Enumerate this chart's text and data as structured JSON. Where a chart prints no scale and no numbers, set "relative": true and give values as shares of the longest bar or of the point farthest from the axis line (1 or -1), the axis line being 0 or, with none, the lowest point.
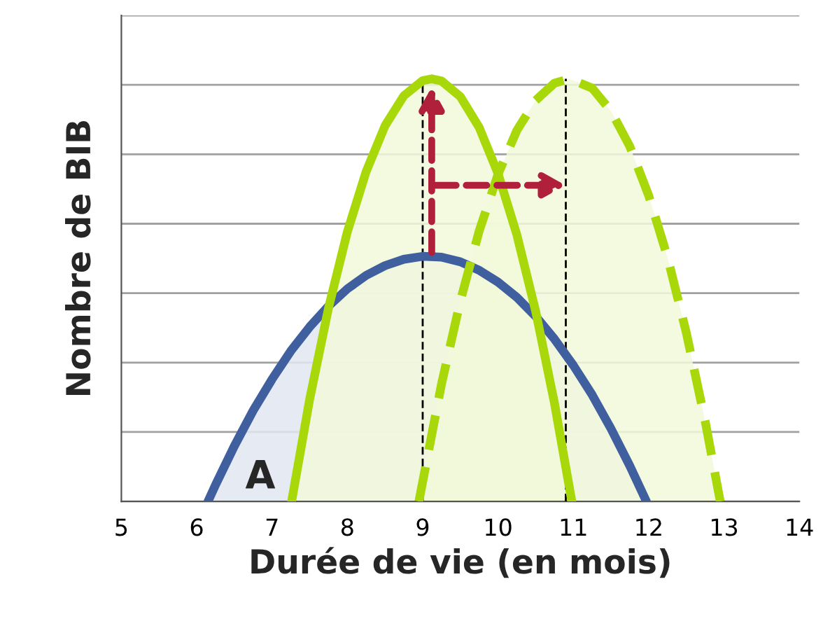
{
  "chart_data": {
    "type": "area",
    "relative": true,
    "xlabel": "Durée de vie (en mois)",
    "ylabel": "Nombre de BIB",
    "xlim": [
      5,
      14
    ],
    "xticks": [
      5,
      6,
      7,
      8,
      9,
      10,
      11,
      12,
      13,
      14
    ],
    "grid": "y",
    "series": [
      {
        "color": "#3f5f9f",
        "line_style": "solid",
        "x": [
          6.15,
          6.25,
          6.5,
          6.75,
          7,
          7.25,
          7.5,
          7.75,
          8,
          8.25,
          8.5,
          8.75,
          9,
          9.25,
          9.5,
          9.75,
          10,
          10.25,
          10.5,
          10.75,
          11,
          11.25,
          11.5,
          11.75,
          11.97
        ],
        "values": [
          0,
          0.039,
          0.131,
          0.215,
          0.289,
          0.356,
          0.413,
          0.462,
          0.503,
          0.535,
          0.558,
          0.573,
          0.58,
          0.578,
          0.567,
          0.547,
          0.519,
          0.483,
          0.438,
          0.384,
          0.322,
          0.252,
          0.172,
          0.084,
          0
        ]
      },
      {
        "color": "#a8d80a",
        "line_style": "solid",
        "x": [
          7.26,
          7.5,
          7.75,
          8,
          8.25,
          8.5,
          8.75,
          9,
          9.12,
          9.25,
          9.5,
          9.75,
          10,
          10.25,
          10.5,
          10.75,
          10.98
        ],
        "values": [
          0,
          0.242,
          0.458,
          0.638,
          0.781,
          0.889,
          0.96,
          0.996,
          1,
          0.995,
          0.958,
          0.885,
          0.776,
          0.631,
          0.45,
          0.232,
          0
        ]
      },
      {
        "color": "#a8d80a",
        "line_style": "dashed",
        "x": [
          8.95,
          9.25,
          9.5,
          9.75,
          10,
          10.25,
          10.5,
          10.75,
          10.95,
          11.25,
          11.5,
          11.75,
          12,
          12.25,
          12.5,
          12.75,
          12.95
        ],
        "values": [
          0,
          0.278,
          0.474,
          0.64,
          0.774,
          0.878,
          0.949,
          0.99,
          1,
          0.978,
          0.924,
          0.84,
          0.724,
          0.578,
          0.399,
          0.19,
          0
        ]
      }
    ],
    "ref_lines": [
      {
        "axis": "x",
        "value": 9,
        "color": "#000000",
        "line_style": "dashed"
      },
      {
        "axis": "x",
        "value": 10.9,
        "color": "#000000",
        "line_style": "dashed"
      }
    ],
    "annotations": [
      "A"
    ]
  }
}
